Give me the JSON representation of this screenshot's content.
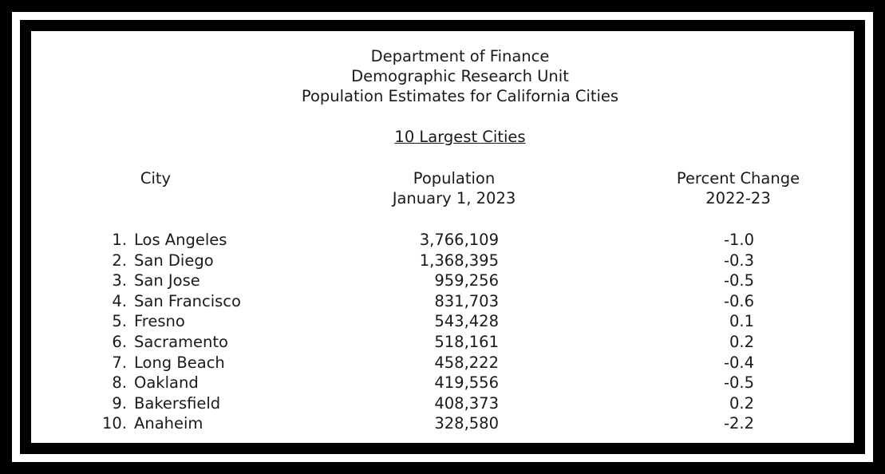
{
  "header": {
    "line1": "Department of Finance",
    "line2": "Demographic Research Unit",
    "line3": "Population Estimates for California Cities",
    "subtitle": "10 Largest Cities"
  },
  "columns": {
    "city": "City",
    "population_line1": "Population",
    "population_line2": "January 1, 2023",
    "percent_line1": "Percent Change",
    "percent_line2": "2022-23"
  },
  "rows": [
    {
      "rank": "1.",
      "city": "Los Angeles",
      "population": "3,766,109",
      "percent_change": "-1.0"
    },
    {
      "rank": "2.",
      "city": "San Diego",
      "population": "1,368,395",
      "percent_change": "-0.3"
    },
    {
      "rank": "3.",
      "city": "San Jose",
      "population": "959,256",
      "percent_change": "-0.5"
    },
    {
      "rank": "4.",
      "city": "San Francisco",
      "population": "831,703",
      "percent_change": "-0.6"
    },
    {
      "rank": "5.",
      "city": "Fresno",
      "population": "543,428",
      "percent_change": "0.1"
    },
    {
      "rank": "6.",
      "city": "Sacramento",
      "population": "518,161",
      "percent_change": "0.2"
    },
    {
      "rank": "7.",
      "city": "Long Beach",
      "population": "458,222",
      "percent_change": "-0.4"
    },
    {
      "rank": "8.",
      "city": "Oakland",
      "population": "419,556",
      "percent_change": "-0.5"
    },
    {
      "rank": "9.",
      "city": "Bakersfield",
      "population": "408,373",
      "percent_change": "0.2"
    },
    {
      "rank": "10.",
      "city": "Anaheim",
      "population": "328,580",
      "percent_change": "-2.2"
    }
  ]
}
